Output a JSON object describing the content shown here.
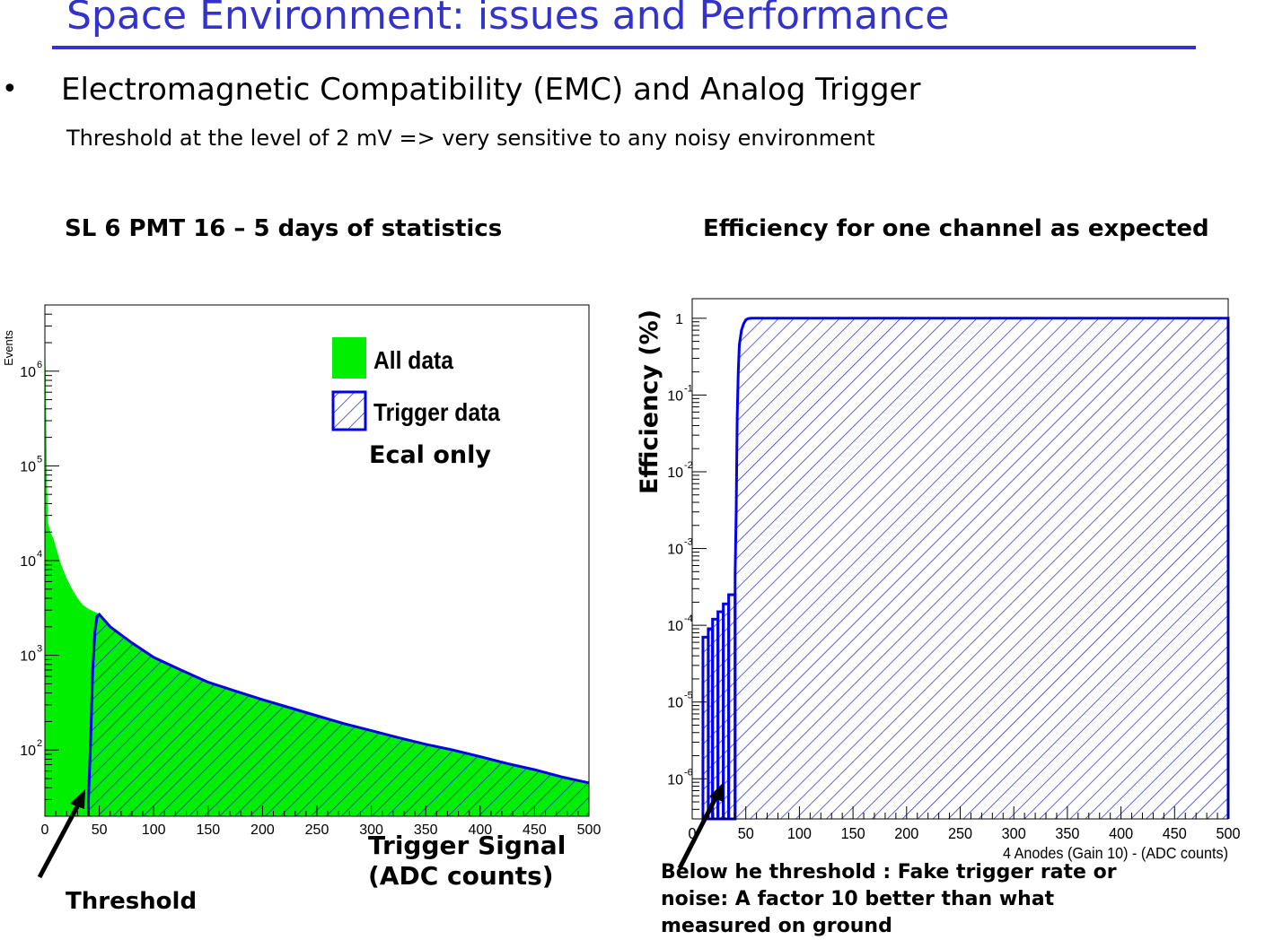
{
  "slide": {
    "title": "Space Environment: issues and Performance",
    "bullet": "Electromagnetic Compatibility (EMC) and Analog Trigger",
    "subtext": "Threshold at the level of 2 mV => very sensitive to any noisy environment",
    "left_caption": "SL 6 PMT 16 – 5 days of statistics",
    "right_caption": "Efficiency for one channel as expected",
    "threshold_label": "Threshold",
    "trigger_signal_label_1": "Trigger Signal",
    "trigger_signal_label_2": "(ADC counts)",
    "below_label_1": "Below he threshold : Fake trigger rate or",
    "below_label_2": "noise: A factor 10 better than what",
    "below_label_3": "measured on ground",
    "accent": "#3333cc"
  },
  "chart_data": [
    {
      "type": "area",
      "ylabel": "Events",
      "xlim": [
        0,
        500
      ],
      "ylim": [
        20,
        5000000
      ],
      "yscale": "log",
      "x_ticks": [
        "0",
        "50",
        "100",
        "150",
        "200",
        "250",
        "300",
        "350",
        "400",
        "450",
        "500"
      ],
      "y_ticks": [
        {
          "base": "10",
          "exp": "2",
          "value": 100
        },
        {
          "base": "10",
          "exp": "3",
          "value": 1000
        },
        {
          "base": "10",
          "exp": "4",
          "value": 10000
        },
        {
          "base": "10",
          "exp": "5",
          "value": 100000
        },
        {
          "base": "10",
          "exp": "6",
          "value": 1000000
        }
      ],
      "legend": {
        "position": "top-right",
        "entries": [
          "All data",
          "Trigger data"
        ],
        "note": "Ecal only"
      },
      "series": [
        {
          "name": "All data",
          "color": "#00ee00",
          "x": [
            0,
            1,
            2,
            3,
            5,
            8,
            10,
            15,
            20,
            25,
            30,
            35,
            40,
            45,
            50,
            60,
            80,
            100,
            125,
            150,
            175,
            200,
            225,
            250,
            275,
            300,
            325,
            350,
            375,
            400,
            425,
            450,
            475,
            500
          ],
          "y": [
            3000000,
            600000,
            60000,
            25000,
            20000,
            17000,
            14000,
            9000,
            6500,
            5000,
            4000,
            3400,
            3100,
            2900,
            2700,
            2000,
            1350,
            950,
            700,
            520,
            420,
            340,
            280,
            230,
            190,
            160,
            135,
            115,
            100,
            85,
            72,
            62,
            52,
            45
          ]
        },
        {
          "name": "Trigger data",
          "color": "#0000ee",
          "x": [
            40,
            42,
            44,
            46,
            48,
            50,
            60,
            80,
            100,
            125,
            150,
            175,
            200,
            225,
            250,
            275,
            300,
            325,
            350,
            375,
            400,
            425,
            450,
            475,
            500
          ],
          "y": [
            30,
            120,
            700,
            1800,
            2600,
            2700,
            2000,
            1350,
            950,
            700,
            520,
            420,
            340,
            280,
            230,
            190,
            160,
            135,
            115,
            100,
            85,
            72,
            62,
            52,
            45
          ]
        }
      ]
    },
    {
      "type": "area",
      "xlabel": "4 Anodes (Gain 10)  - (ADC counts)",
      "ylabel": "Efficiency (%)",
      "xlim": [
        0,
        500
      ],
      "ylim": [
        3e-07,
        1.8
      ],
      "yscale": "log",
      "x_ticks": [
        "0",
        "50",
        "100",
        "150",
        "200",
        "250",
        "300",
        "350",
        "400",
        "450",
        "500"
      ],
      "y_ticks": [
        {
          "base": "10",
          "exp": "-6",
          "value": 1e-06
        },
        {
          "base": "10",
          "exp": "-5",
          "value": 1e-05
        },
        {
          "base": "10",
          "exp": "-4",
          "value": 0.0001
        },
        {
          "base": "10",
          "exp": "-3",
          "value": 0.001
        },
        {
          "base": "10",
          "exp": "-2",
          "value": 0.01
        },
        {
          "base": "10",
          "exp": "-1",
          "value": 0.1
        },
        {
          "base": "1",
          "exp": "",
          "value": 1
        }
      ],
      "spikes": [
        {
          "x0": 10,
          "x1": 15,
          "y": 7e-05
        },
        {
          "x0": 15,
          "x1": 19,
          "y": 9e-05
        },
        {
          "x0": 19,
          "x1": 24,
          "y": 0.00012
        },
        {
          "x0": 24,
          "x1": 29,
          "y": 0.00015
        },
        {
          "x0": 29,
          "x1": 34,
          "y": 0.00019
        },
        {
          "x0": 34,
          "x1": 40,
          "y": 0.00025
        }
      ],
      "series": [
        {
          "name": "",
          "color": "#0000ee",
          "x": [
            40,
            41,
            42,
            43,
            44,
            46,
            48,
            50,
            52,
            55,
            500
          ],
          "y": [
            0.00045,
            0.003,
            0.05,
            0.2,
            0.45,
            0.7,
            0.85,
            0.95,
            0.99,
            1.0,
            1.0
          ]
        }
      ]
    }
  ]
}
